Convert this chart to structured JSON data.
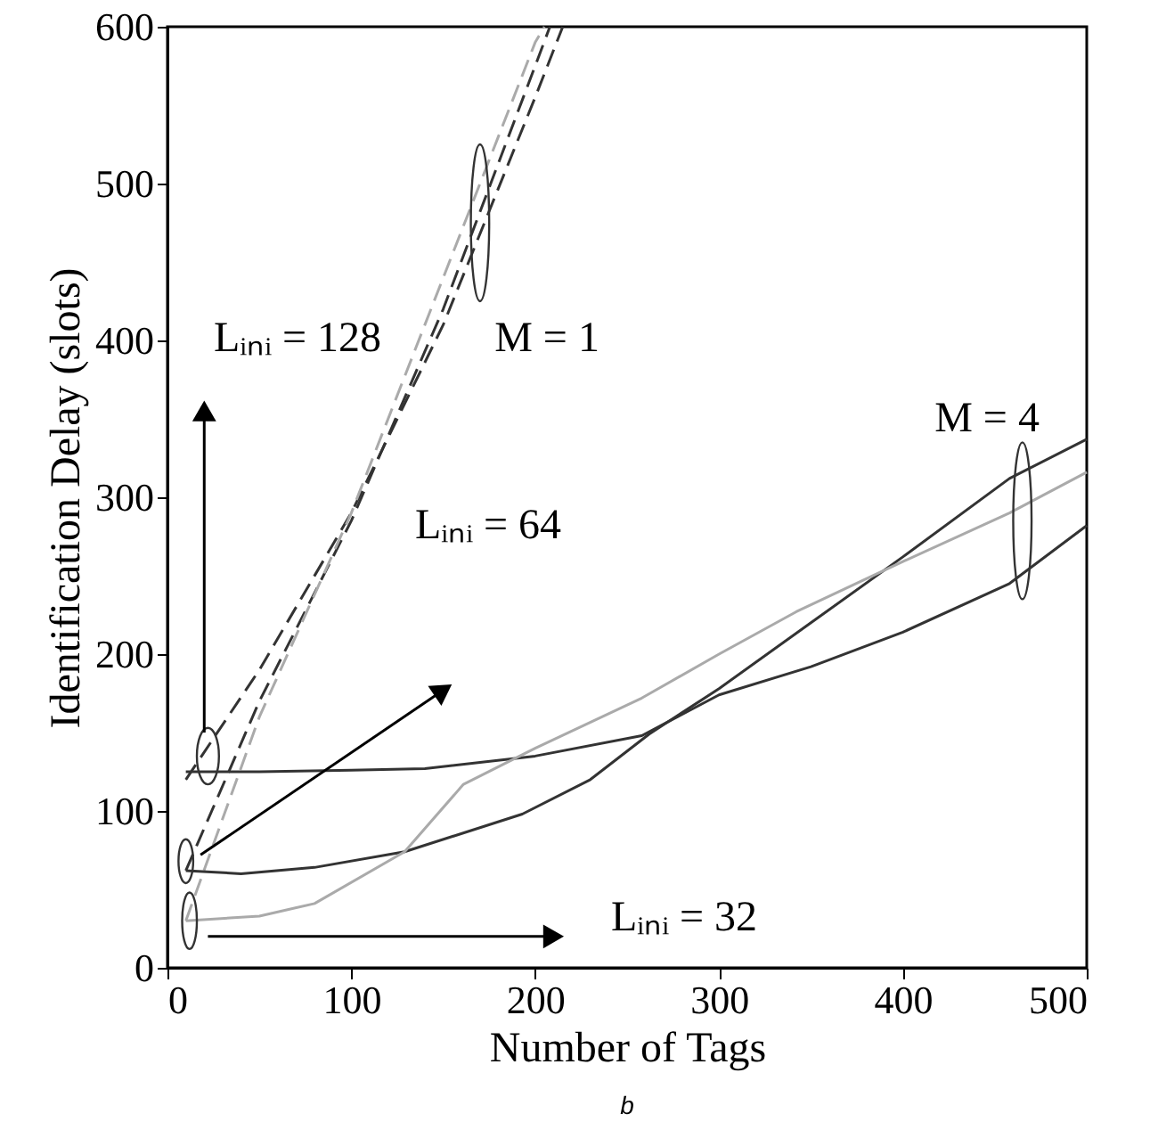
{
  "chart_data": {
    "type": "line",
    "xlabel": "Number of Tags",
    "ylabel": "Identification Delay (slots)",
    "xlim": [
      0,
      500
    ],
    "ylim": [
      0,
      600
    ],
    "xticks": [
      0,
      100,
      200,
      300,
      400,
      500
    ],
    "yticks": [
      0,
      100,
      200,
      300,
      400,
      500,
      600
    ],
    "grid": false,
    "marker": "none",
    "series": [
      {
        "color": "#333333",
        "line_style": "dashed",
        "x": [
          10,
          50,
          100,
          150,
          200,
          215
        ],
        "values": [
          120,
          190,
          290,
          410,
          555,
          600
        ]
      },
      {
        "color": "#333333",
        "line_style": "dashed",
        "x": [
          10,
          50,
          100,
          150,
          200,
          208
        ],
        "values": [
          62,
          170,
          285,
          420,
          575,
          600
        ]
      },
      {
        "color": "#aaaaaa",
        "line_style": "dashed",
        "x": [
          10,
          50,
          100,
          150,
          200,
          205
        ],
        "values": [
          30,
          160,
          290,
          440,
          590,
          600
        ]
      },
      {
        "color": "#333333",
        "line_style": "solid",
        "x": [
          10,
          50,
          100,
          140,
          200,
          258,
          300,
          350,
          400,
          458,
          500
        ],
        "values": [
          125,
          125,
          126,
          127,
          135,
          148,
          174,
          192,
          214,
          245,
          282
        ]
      },
      {
        "color": "#333333",
        "line_style": "solid",
        "x": [
          10,
          40,
          80,
          129,
          193,
          230,
          262,
          300,
          350,
          400,
          458,
          500
        ],
        "values": [
          62,
          60,
          64,
          74,
          98,
          120,
          149,
          178,
          220,
          262,
          312,
          337
        ]
      },
      {
        "color": "#aaaaaa",
        "line_style": "solid",
        "x": [
          10,
          50,
          80,
          129,
          161,
          200,
          258,
          300,
          342,
          400,
          458,
          500
        ],
        "values": [
          30,
          33,
          41,
          74,
          117,
          140,
          172,
          200,
          227,
          259,
          290,
          316
        ]
      }
    ],
    "annotations": [
      "Lᵢₙᵢ = 128",
      "M = 1",
      "Lᵢₙᵢ = 64",
      "M = 4",
      "Lᵢₙᵢ = 32",
      "b"
    ]
  }
}
